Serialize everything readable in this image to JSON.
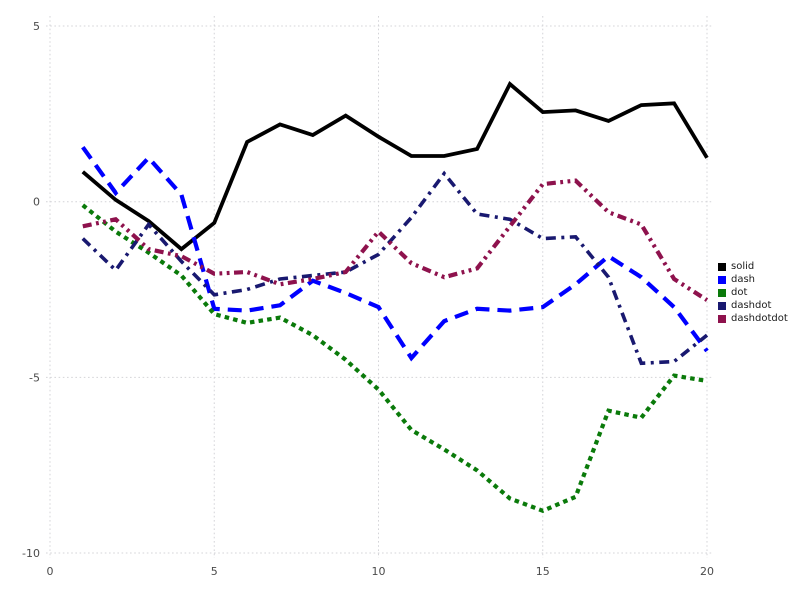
{
  "chart_data": {
    "type": "line",
    "title": "",
    "xlabel": "",
    "ylabel": "",
    "xlim": [
      0,
      20
    ],
    "ylim": [
      -10,
      5
    ],
    "x_ticks": [
      "0",
      "5",
      "10",
      "15",
      "20"
    ],
    "x_tick_values": [
      0,
      5,
      10,
      15,
      20
    ],
    "y_ticks": [
      "5",
      "0",
      "-5",
      "-10"
    ],
    "y_tick_values": [
      5,
      0,
      -5,
      -10
    ],
    "grid": "dotted, both axes, light gray",
    "grid_color": "#d4d4d8",
    "tick_label_color": "#4a4a4a",
    "legend_position": "right-outside-middle",
    "x": [
      1,
      2,
      3,
      4,
      5,
      6,
      7,
      8,
      9,
      10,
      11,
      12,
      13,
      14,
      15,
      16,
      17,
      18,
      19,
      20
    ],
    "series": [
      {
        "name": "solid",
        "color": "#000000",
        "line_style": "solid",
        "values": [
          0.85,
          0.05,
          -0.55,
          -1.35,
          -0.6,
          1.7,
          2.2,
          1.9,
          2.45,
          1.85,
          1.3,
          1.3,
          1.5,
          3.35,
          2.55,
          2.6,
          2.3,
          2.75,
          2.8,
          1.25
        ]
      },
      {
        "name": "dash",
        "color": "#0000ff",
        "line_style": "dash",
        "values": [
          1.55,
          0.25,
          1.25,
          0.2,
          -3.05,
          -3.1,
          -2.95,
          -2.25,
          -2.6,
          -3.0,
          -4.45,
          -3.4,
          -3.05,
          -3.1,
          -3.0,
          -2.35,
          -1.55,
          -2.15,
          -3.0,
          -4.25
        ]
      },
      {
        "name": "dot",
        "color": "#0a7a0a",
        "line_style": "dot",
        "values": [
          -0.1,
          -0.85,
          -1.45,
          -2.1,
          -3.2,
          -3.45,
          -3.3,
          -3.8,
          -4.5,
          -5.35,
          -6.5,
          -7.05,
          -7.65,
          -8.45,
          -8.8,
          -8.4,
          -5.95,
          -6.15,
          -4.95,
          -5.1
        ]
      },
      {
        "name": "dashdot",
        "color": "#191970",
        "line_style": "dashdot",
        "values": [
          -1.05,
          -1.95,
          -0.65,
          -1.7,
          -2.65,
          -2.5,
          -2.2,
          -2.1,
          -2.0,
          -1.5,
          -0.45,
          0.8,
          -0.35,
          -0.5,
          -1.05,
          -1.0,
          -2.15,
          -4.6,
          -4.55,
          -3.8
        ]
      },
      {
        "name": "dashdotdot",
        "color": "#8e124d",
        "line_style": "dashdotdot",
        "values": [
          -0.7,
          -0.5,
          -1.35,
          -1.55,
          -2.05,
          -2.0,
          -2.35,
          -2.2,
          -2.0,
          -0.85,
          -1.75,
          -2.15,
          -1.9,
          -0.7,
          0.5,
          0.6,
          -0.3,
          -0.65,
          -2.2,
          -2.8
        ]
      }
    ],
    "legend_entries": [
      "solid",
      "dash",
      "dot",
      "dashdot",
      "dashdotdot"
    ]
  }
}
